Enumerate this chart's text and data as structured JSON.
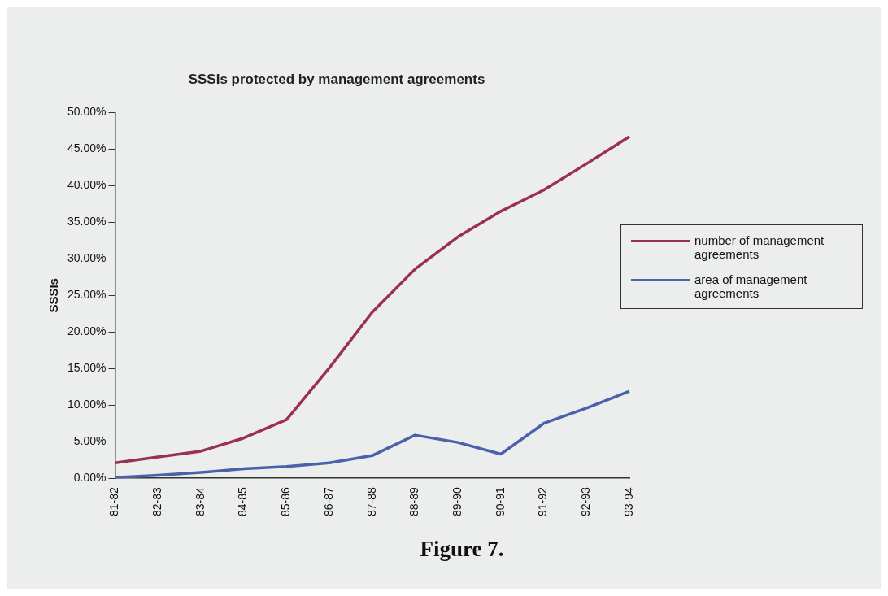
{
  "chart_data": {
    "type": "line",
    "title": "SSSIs protected by management agreements",
    "ylabel": "SSSIs",
    "categories": [
      "81-82",
      "82-83",
      "83-84",
      "84-85",
      "85-86",
      "86-87",
      "87-88",
      "88-89",
      "89-90",
      "90-91",
      "91-92",
      "92-93",
      "93-94"
    ],
    "series": [
      {
        "name": "number of management agreements",
        "color": "#9b3050",
        "values": [
          2.1,
          2.9,
          3.7,
          5.5,
          8.0,
          15.1,
          22.7,
          28.6,
          33.0,
          36.5,
          39.4,
          43.0,
          46.7
        ]
      },
      {
        "name": "area of management agreements",
        "color": "#4a62aa",
        "values": [
          0.1,
          0.4,
          0.8,
          1.3,
          1.6,
          2.1,
          3.1,
          5.9,
          4.9,
          3.3,
          7.5,
          9.6,
          11.9
        ]
      }
    ],
    "ylim": [
      0,
      50
    ],
    "yticks": [
      {
        "value": 0,
        "label": "0.00%"
      },
      {
        "value": 5,
        "label": "5.00%"
      },
      {
        "value": 10,
        "label": "10.00%"
      },
      {
        "value": 15,
        "label": "15.00%"
      },
      {
        "value": 20,
        "label": "20.00%"
      },
      {
        "value": 25,
        "label": "25.00%"
      },
      {
        "value": 30,
        "label": "30.00%"
      },
      {
        "value": 35,
        "label": "35.00%"
      },
      {
        "value": 40,
        "label": "40.00%"
      },
      {
        "value": 45,
        "label": "45.00%"
      },
      {
        "value": 50,
        "label": "50.00%"
      }
    ],
    "grid": false,
    "legend": "right",
    "marker": "none",
    "line_style": "solid",
    "annotations": [
      "Figure 7."
    ]
  }
}
